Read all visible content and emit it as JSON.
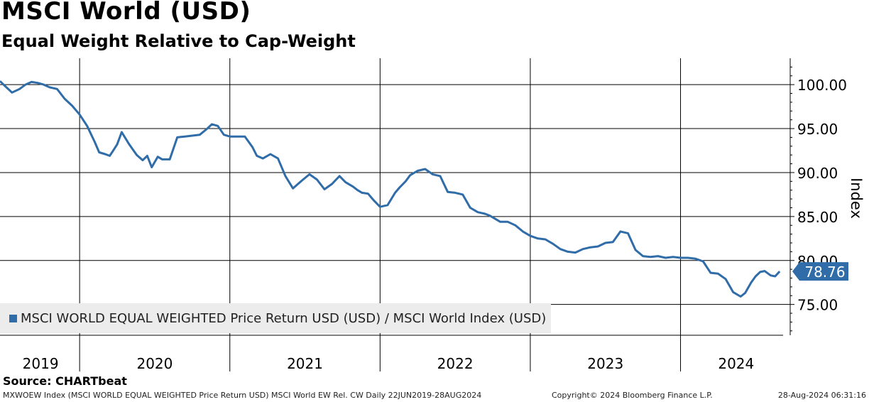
{
  "title": "MSCI World (USD)",
  "subtitle": "Equal Weight Relative to Cap-Weight",
  "source": "Source: CHARTbeat",
  "footer": {
    "left": "MXWOEW Index (MSCI WORLD EQUAL WEIGHTED Price Return USD) MSCI World EW Rel. CW  Daily 22JUN2019-28AUG2024",
    "center": "Copyright© 2024 Bloomberg Finance L.P.",
    "right": "28-Aug-2024 06:31:16"
  },
  "colors": {
    "line": "#2f6ca8",
    "last_value_tag": "#2f6ca8",
    "legend_bg": "#ececec"
  },
  "chart_data": {
    "type": "line",
    "ylabel": "Index",
    "ylim": [
      71.5,
      103.0
    ],
    "yticks": [
      "100.00",
      "95.00",
      "90.00",
      "85.00",
      "80.00",
      "75.00"
    ],
    "ytick_values": [
      100,
      95,
      90,
      85,
      80,
      75
    ],
    "xlim": [
      2019.47,
      2024.73
    ],
    "year_labels": [
      "2019",
      "2020",
      "2021",
      "2022",
      "2023",
      "2024"
    ],
    "year_label_positions": [
      2019.74,
      2020.5,
      2021.5,
      2022.5,
      2023.5,
      2024.37
    ],
    "year_boundaries": [
      2020.0,
      2021.0,
      2022.0,
      2023.0,
      2024.0
    ],
    "last_value_label": "78.76",
    "legend": [
      "MSCI WORLD EQUAL WEIGHTED Price Return USD (USD) / MSCI World Index (USD)"
    ],
    "legend_position": "bottom-left",
    "grid": true,
    "series": [
      {
        "name": "MSCI WORLD EQUAL WEIGHTED Price Return USD (USD) / MSCI World Index (USD)",
        "x": [
          2019.47,
          2019.5,
          2019.55,
          2019.6,
          2019.64,
          2019.68,
          2019.72,
          2019.76,
          2019.8,
          2019.85,
          2019.9,
          2019.95,
          2020.0,
          2020.05,
          2020.1,
          2020.13,
          2020.17,
          2020.2,
          2020.22,
          2020.25,
          2020.28,
          2020.33,
          2020.38,
          2020.42,
          2020.45,
          2020.48,
          2020.52,
          2020.55,
          2020.6,
          2020.65,
          2020.7,
          2020.75,
          2020.8,
          2020.85,
          2020.88,
          2020.92,
          2020.96,
          2021.0,
          2021.05,
          2021.1,
          2021.15,
          2021.18,
          2021.22,
          2021.27,
          2021.32,
          2021.37,
          2021.42,
          2021.48,
          2021.53,
          2021.58,
          2021.63,
          2021.68,
          2021.73,
          2021.77,
          2021.82,
          2021.85,
          2021.88,
          2021.92,
          2021.96,
          2022.0,
          2022.05,
          2022.1,
          2022.13,
          2022.17,
          2022.2,
          2022.25,
          2022.3,
          2022.35,
          2022.4,
          2022.45,
          2022.5,
          2022.55,
          2022.6,
          2022.65,
          2022.7,
          2022.73,
          2022.76,
          2022.8,
          2022.85,
          2022.9,
          2022.95,
          2023.0,
          2023.05,
          2023.1,
          2023.15,
          2023.2,
          2023.25,
          2023.3,
          2023.35,
          2023.4,
          2023.45,
          2023.5,
          2023.55,
          2023.6,
          2023.65,
          2023.7,
          2023.75,
          2023.8,
          2023.85,
          2023.9,
          2023.95,
          2024.0,
          2024.05,
          2024.1,
          2024.15,
          2024.2,
          2024.25,
          2024.3,
          2024.35,
          2024.4,
          2024.43,
          2024.47,
          2024.5,
          2024.53,
          2024.56,
          2024.6,
          2024.63,
          2024.66
        ],
        "values": [
          100.4,
          99.9,
          99.1,
          99.5,
          100.0,
          100.3,
          100.2,
          100.0,
          99.7,
          99.5,
          98.4,
          97.6,
          96.6,
          95.3,
          93.5,
          92.3,
          92.1,
          91.9,
          92.4,
          93.2,
          94.6,
          93.2,
          92.0,
          91.4,
          91.9,
          90.6,
          91.8,
          91.5,
          91.5,
          94.0,
          94.1,
          94.2,
          94.3,
          95.0,
          95.5,
          95.3,
          94.3,
          94.1,
          94.1,
          94.1,
          92.9,
          91.9,
          91.6,
          92.1,
          91.6,
          89.6,
          88.2,
          89.1,
          89.8,
          89.2,
          88.1,
          88.7,
          89.6,
          88.9,
          88.4,
          88.0,
          87.7,
          87.6,
          86.8,
          86.1,
          86.3,
          87.7,
          88.3,
          89.0,
          89.7,
          90.2,
          90.4,
          89.8,
          89.6,
          87.8,
          87.7,
          87.5,
          86.0,
          85.5,
          85.3,
          85.1,
          84.8,
          84.4,
          84.4,
          84.0,
          83.3,
          82.8,
          82.5,
          82.4,
          81.9,
          81.3,
          81.0,
          80.9,
          81.3,
          81.5,
          81.6,
          82.0,
          82.1,
          83.3,
          83.1,
          81.2,
          80.5,
          80.4,
          80.5,
          80.3,
          80.4,
          80.3,
          80.3,
          80.2,
          79.9,
          78.6,
          78.5,
          77.9,
          76.4,
          75.9,
          76.3,
          77.5,
          78.2,
          78.7,
          78.8,
          78.3,
          78.2,
          78.76
        ]
      }
    ]
  }
}
